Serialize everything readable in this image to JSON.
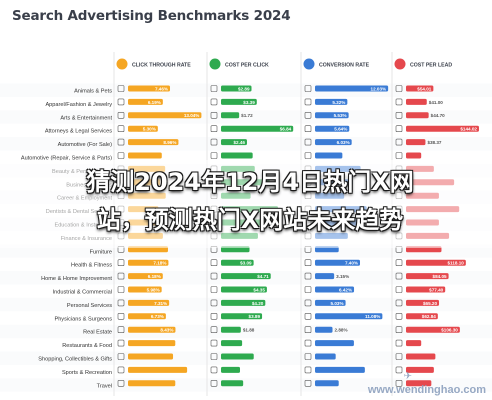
{
  "title": "Search Advertising Benchmarks 2024",
  "headers": [
    {
      "label": "CLICK THROUGH RATE",
      "icon": "cursor-icon",
      "color": "#f5a623"
    },
    {
      "label": "COST PER CLICK",
      "icon": "dollar-icon",
      "color": "#2eaa4f"
    },
    {
      "label": "CONVERSION RATE",
      "icon": "funnel-icon",
      "color": "#3a7bd5"
    },
    {
      "label": "COST PER LEAD",
      "icon": "tag-icon",
      "color": "#e5484d"
    }
  ],
  "overlay": {
    "line1": "猜测2024年12月4日热门X网",
    "line2": "站，预测热门X网站未来趋势"
  },
  "watermark": "www.wendinghao.com",
  "chart_data": {
    "type": "bar",
    "title": "Search Advertising Benchmarks 2024",
    "categories": [
      "Animals & Pets",
      "Apparel/Fashion & Jewelry",
      "Arts & Entertainment",
      "Attorneys & Legal Services",
      "Automotive (For Sale)",
      "Automotive (Repair, Service & Parts)",
      "Beauty & Personal Care",
      "Business Services",
      "Career & Employment",
      "Dentists & Dental Services",
      "Education & Instruction",
      "Finance & Insurance",
      "Furniture",
      "Health & Fitness",
      "Home & Home Improvement",
      "Industrial & Commercial",
      "Personal Services",
      "Physicians & Surgeons",
      "Real Estate",
      "Restaurants & Food",
      "Shopping, Collectibles & Gifts",
      "Sports & Recreation",
      "Travel"
    ],
    "series": [
      {
        "name": "CLICK THROUGH RATE",
        "color": "#f5a623",
        "labels": [
          "7.46%",
          "6.19%",
          "13.04%",
          "5.30%",
          "8.96%",
          "",
          "",
          "",
          "",
          "",
          "",
          "",
          "",
          "7.18%",
          "6.18%",
          "5.98%",
          "7.31%",
          "6.73%",
          "8.43%",
          "",
          "",
          "",
          ""
        ],
        "values": [
          7.46,
          6.19,
          13.04,
          5.3,
          8.96,
          6.0,
          6.6,
          5.7,
          6.7,
          5.4,
          7.0,
          6.2,
          7.1,
          7.18,
          6.18,
          5.98,
          7.31,
          6.73,
          8.43,
          8.4,
          8.0,
          10.5,
          8.4
        ]
      },
      {
        "name": "COST PER CLICK",
        "color": "#2eaa4f",
        "labels": [
          "$2.89",
          "$3.39",
          "$1.72",
          "$6.84",
          "$2.46",
          "",
          "",
          "",
          "",
          "",
          "",
          "",
          "",
          "$3.09",
          "$4.71",
          "$4.35",
          "$4.20",
          "$3.89",
          "$1.88",
          "",
          "",
          "",
          ""
        ],
        "values": [
          2.89,
          3.39,
          1.72,
          6.84,
          2.46,
          3.0,
          3.2,
          4.6,
          2.8,
          5.4,
          4.3,
          3.5,
          2.7,
          3.09,
          4.71,
          4.35,
          4.2,
          3.89,
          1.88,
          2.0,
          3.1,
          1.8,
          2.1
        ]
      },
      {
        "name": "CONVERSION RATE",
        "color": "#3a7bd5",
        "labels": [
          "12.03%",
          "5.32%",
          "5.53%",
          "5.64%",
          "6.03%",
          "",
          "",
          "",
          "",
          "",
          "",
          "",
          "",
          "7.40%",
          "3.15%",
          "6.42%",
          "5.03%",
          "11.08%",
          "2.88%",
          "",
          "",
          "",
          ""
        ],
        "values": [
          12.03,
          5.32,
          5.53,
          5.64,
          6.03,
          4.5,
          7.5,
          6.2,
          4.8,
          8.5,
          7.6,
          5.4,
          3.9,
          7.4,
          3.15,
          6.42,
          5.03,
          11.08,
          2.88,
          6.4,
          3.4,
          8.2,
          3.9
        ]
      },
      {
        "name": "COST PER LEAD",
        "color": "#e5484d",
        "labels": [
          "$54.01",
          "$41.00",
          "$44.70",
          "$144.02",
          "$38.37",
          "",
          "",
          "",
          "",
          "",
          "",
          "",
          "",
          "$118.10",
          "$84.05",
          "$77.40",
          "$65.20",
          "$62.84",
          "$106.30",
          "",
          "",
          "",
          ""
        ],
        "values": [
          54.01,
          41.0,
          44.7,
          144.02,
          38.37,
          30.0,
          55.0,
          95.0,
          65.0,
          105.0,
          65.0,
          85.0,
          70.0,
          118.1,
          84.05,
          77.4,
          65.2,
          62.84,
          106.3,
          30.0,
          58.0,
          55.0,
          50.0
        ]
      }
    ]
  }
}
